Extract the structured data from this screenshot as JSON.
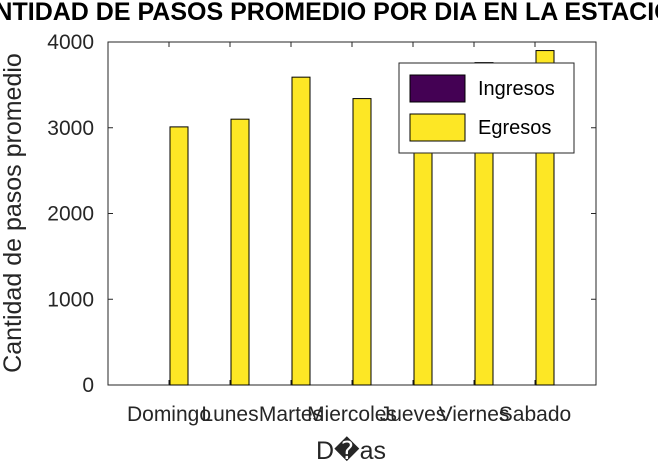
{
  "chart_data": {
    "type": "bar",
    "title": "CANTIDAD DE PASOS PROMEDIO POR DIA EN LA ESTACION",
    "xlabel": "D�as",
    "ylabel": "Cantidad de pasos promedio",
    "categories": [
      "Domingo",
      "Lunes",
      "Martes",
      "Miercoles",
      "Jueves",
      "Viernes",
      "Sabado"
    ],
    "ylim": [
      0,
      4000
    ],
    "yticks": [
      "0",
      "1000",
      "2000",
      "3000",
      "4000"
    ],
    "series": [
      {
        "name": "Ingresos",
        "color": "#440154",
        "values": [
          0,
          0,
          0,
          0,
          0,
          0,
          0
        ]
      },
      {
        "name": "Egresos",
        "color": "#fde725",
        "values": [
          3010,
          3100,
          3590,
          3340,
          3560,
          3760,
          3900
        ]
      }
    ],
    "legend_position": "top-right",
    "grid": false
  }
}
